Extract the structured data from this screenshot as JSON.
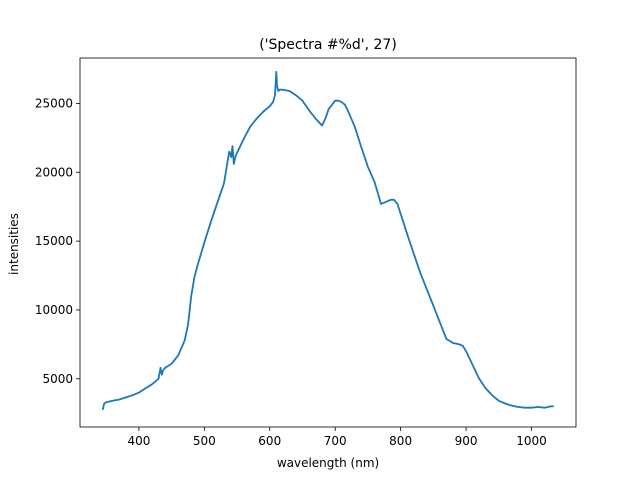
{
  "chart_data": {
    "type": "line",
    "title": "('Spectra #%d', 27)",
    "xlabel": "wavelength (nm)",
    "ylabel": "intensities",
    "xlim": [
      310,
      1068
    ],
    "ylim": [
      1500,
      28300
    ],
    "xticks": [
      400,
      500,
      600,
      700,
      800,
      900,
      1000
    ],
    "yticks": [
      5000,
      10000,
      15000,
      20000,
      25000
    ],
    "grid": false,
    "series": [
      {
        "color": "#1f77b4",
        "x": [
          345,
          347,
          350,
          360,
          370,
          380,
          390,
          400,
          410,
          420,
          430,
          433,
          435,
          437,
          440,
          450,
          460,
          470,
          475,
          480,
          485,
          490,
          495,
          500,
          510,
          520,
          530,
          538,
          541,
          543,
          545,
          546,
          548,
          550,
          560,
          570,
          580,
          590,
          595,
          600,
          605,
          608,
          610,
          611,
          613,
          615,
          620,
          630,
          640,
          650,
          660,
          670,
          680,
          685,
          690,
          700,
          705,
          710,
          715,
          720,
          730,
          740,
          750,
          760,
          770,
          775,
          780,
          785,
          790,
          795,
          800,
          810,
          820,
          830,
          840,
          850,
          860,
          870,
          880,
          890,
          895,
          900,
          910,
          920,
          930,
          940,
          950,
          960,
          970,
          980,
          990,
          1000,
          1010,
          1020,
          1030,
          1033
        ],
        "y": [
          2800,
          3200,
          3300,
          3400,
          3500,
          3650,
          3800,
          4000,
          4300,
          4600,
          5000,
          5800,
          5300,
          5600,
          5800,
          6100,
          6700,
          7800,
          8900,
          11000,
          12400,
          13300,
          14100,
          14900,
          16400,
          17800,
          19200,
          21500,
          21100,
          21900,
          20600,
          20800,
          21200,
          21400,
          22400,
          23300,
          23900,
          24400,
          24600,
          24800,
          25100,
          25600,
          27300,
          26300,
          25900,
          26000,
          26000,
          25900,
          25600,
          25200,
          24500,
          23900,
          23400,
          23900,
          24600,
          25200,
          25200,
          25100,
          24900,
          24400,
          23300,
          21800,
          20400,
          19300,
          17700,
          17800,
          17900,
          18000,
          18000,
          17700,
          17000,
          15500,
          14100,
          12700,
          11500,
          10300,
          9100,
          7900,
          7600,
          7500,
          7400,
          7000,
          6000,
          5000,
          4300,
          3800,
          3400,
          3200,
          3050,
          2950,
          2900,
          2900,
          2950,
          2900,
          3000,
          3000
        ]
      }
    ]
  }
}
